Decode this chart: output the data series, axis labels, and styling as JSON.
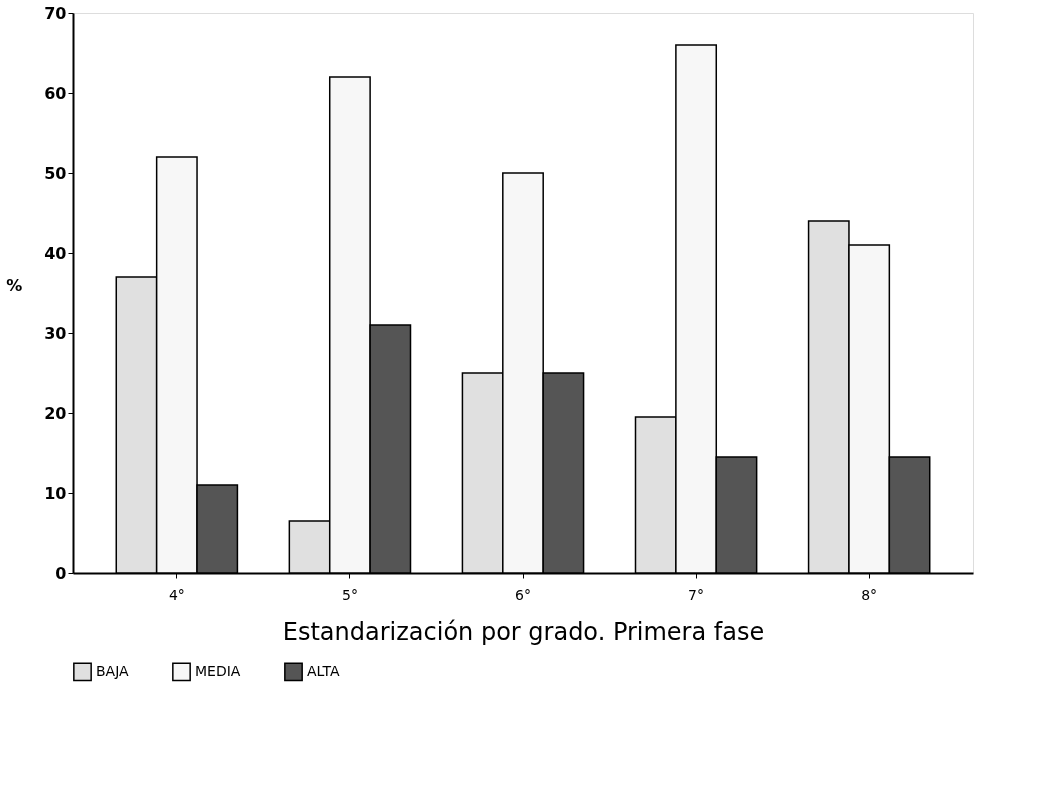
{
  "chart_data": {
    "type": "bar",
    "xlabel": "Estandarización por grado. Primera fase",
    "ylabel": "%",
    "categories": [
      "4°",
      "5°",
      "6°",
      "7°",
      "8°"
    ],
    "series": [
      {
        "name": "BAJA",
        "color": "#e0e0e0",
        "values": [
          37,
          6.5,
          25,
          19.5,
          44
        ]
      },
      {
        "name": "MEDIA",
        "color": "#f7f7f7",
        "values": [
          52,
          62,
          50,
          66,
          41
        ]
      },
      {
        "name": "ALTA",
        "color": "#555555",
        "values": [
          11,
          31,
          25,
          14.5,
          14.5
        ]
      }
    ],
    "ylim": [
      0,
      70
    ],
    "yticks": [
      0,
      10,
      20,
      30,
      40,
      50,
      60,
      70
    ],
    "grid": false,
    "legend": "bottom"
  }
}
